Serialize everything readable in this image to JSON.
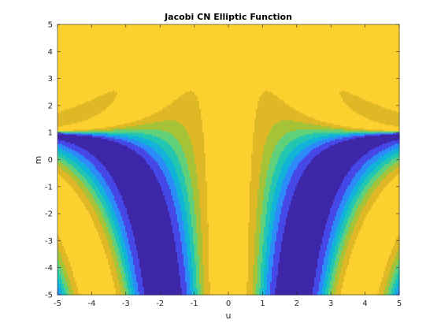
{
  "chart_data": {
    "type": "heatmap",
    "title": "Jacobi CN Elliptic Function",
    "xlabel": "u",
    "ylabel": "m",
    "xlim": [
      -5,
      5
    ],
    "ylim": [
      -5,
      5
    ],
    "xticks": [
      "-5",
      "-4",
      "-3",
      "-2",
      "-1",
      "0",
      "1",
      "2",
      "3",
      "4",
      "5"
    ],
    "yticks": [
      "-5",
      "-4",
      "-3",
      "-2",
      "-1",
      "0",
      "1",
      "2",
      "3",
      "4",
      "5"
    ],
    "grid": false,
    "colormap": "parula",
    "contour_levels": 8,
    "colors": [
      "#3e26a8",
      "#4548e6",
      "#2c8bf8",
      "#12b3d8",
      "#22c6b1",
      "#61d07a",
      "#a6c338",
      "#dfb827",
      "#fcd02e"
    ]
  }
}
